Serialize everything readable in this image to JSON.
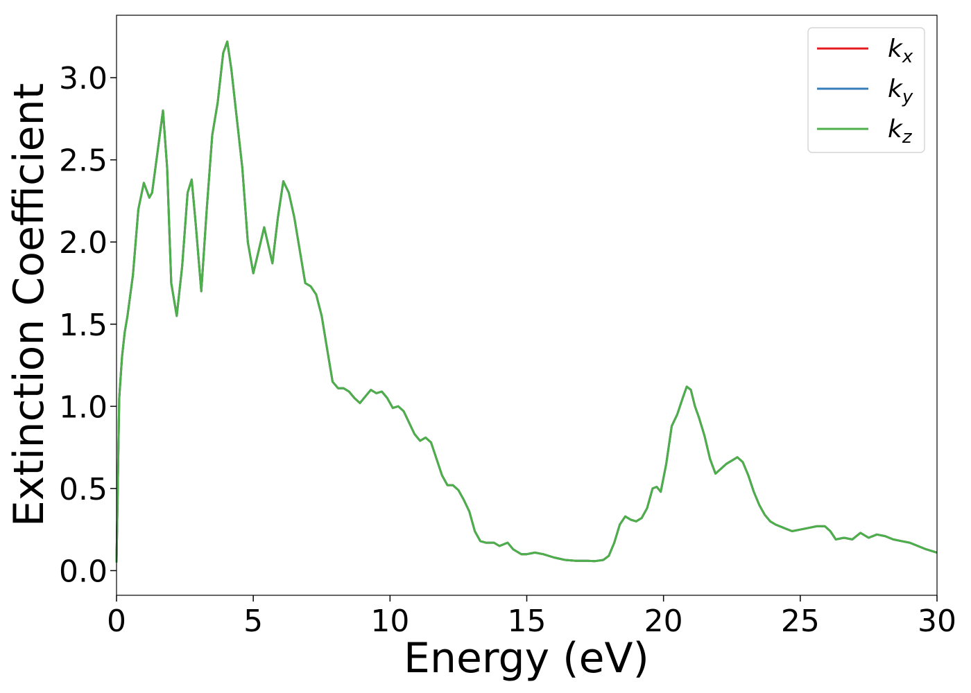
{
  "chart_data": {
    "type": "line",
    "xlabel": "Energy (eV)",
    "ylabel": "Extinction Coefficient",
    "xlim": [
      0,
      30
    ],
    "ylim": [
      -0.15,
      3.38
    ],
    "xticks": [
      0,
      5,
      10,
      15,
      20,
      25,
      30
    ],
    "yticks": [
      0.0,
      0.5,
      1.0,
      1.5,
      2.0,
      2.5,
      3.0
    ],
    "xtick_labels": [
      "0",
      "5",
      "10",
      "15",
      "20",
      "25",
      "30"
    ],
    "ytick_labels": [
      "0.0",
      "0.5",
      "1.0",
      "1.5",
      "2.0",
      "2.5",
      "3.0"
    ],
    "grid": false,
    "legend_position": "top-right",
    "series": [
      {
        "name": "k_x",
        "label_base": "k",
        "label_sub": "x",
        "color": "#e41a1c"
      },
      {
        "name": "k_y",
        "label_base": "k",
        "label_sub": "y",
        "color": "#377eb8"
      },
      {
        "name": "k_z",
        "label_base": "k",
        "label_sub": "z",
        "color": "#4daf4a"
      }
    ],
    "x": [
      0.0,
      0.1,
      0.2,
      0.3,
      0.4,
      0.6,
      0.8,
      1.0,
      1.2,
      1.3,
      1.5,
      1.7,
      1.85,
      2.0,
      2.2,
      2.4,
      2.6,
      2.75,
      2.9,
      3.1,
      3.3,
      3.5,
      3.7,
      3.9,
      4.05,
      4.2,
      4.4,
      4.6,
      4.8,
      5.0,
      5.2,
      5.4,
      5.55,
      5.7,
      5.9,
      6.1,
      6.3,
      6.5,
      6.7,
      6.9,
      7.1,
      7.3,
      7.5,
      7.7,
      7.9,
      8.1,
      8.3,
      8.5,
      8.7,
      8.9,
      9.1,
      9.3,
      9.5,
      9.7,
      9.9,
      10.1,
      10.3,
      10.5,
      10.7,
      10.9,
      11.1,
      11.3,
      11.5,
      11.7,
      11.9,
      12.1,
      12.3,
      12.5,
      12.7,
      12.9,
      13.1,
      13.3,
      13.5,
      13.8,
      14.0,
      14.3,
      14.5,
      14.8,
      15.0,
      15.3,
      15.6,
      16.0,
      16.4,
      16.8,
      17.2,
      17.5,
      17.8,
      18.0,
      18.2,
      18.4,
      18.6,
      18.8,
      19.0,
      19.2,
      19.4,
      19.6,
      19.75,
      19.9,
      20.1,
      20.3,
      20.5,
      20.7,
      20.85,
      21.0,
      21.15,
      21.3,
      21.5,
      21.7,
      21.9,
      22.1,
      22.3,
      22.5,
      22.7,
      22.9,
      23.1,
      23.3,
      23.5,
      23.7,
      23.9,
      24.1,
      24.4,
      24.7,
      25.0,
      25.3,
      25.6,
      25.9,
      26.1,
      26.3,
      26.6,
      26.9,
      27.2,
      27.5,
      27.8,
      28.1,
      28.4,
      28.7,
      29.0,
      29.3,
      29.6,
      30.0
    ],
    "values": [
      0.05,
      1.05,
      1.3,
      1.45,
      1.55,
      1.8,
      2.2,
      2.36,
      2.27,
      2.3,
      2.55,
      2.8,
      2.45,
      1.75,
      1.55,
      1.85,
      2.3,
      2.38,
      2.1,
      1.7,
      2.2,
      2.65,
      2.85,
      3.15,
      3.22,
      3.05,
      2.75,
      2.45,
      2.0,
      1.81,
      1.95,
      2.09,
      1.98,
      1.87,
      2.15,
      2.37,
      2.3,
      2.15,
      1.95,
      1.75,
      1.73,
      1.68,
      1.55,
      1.35,
      1.15,
      1.11,
      1.11,
      1.09,
      1.05,
      1.02,
      1.06,
      1.1,
      1.08,
      1.09,
      1.05,
      0.99,
      1.0,
      0.97,
      0.9,
      0.83,
      0.79,
      0.81,
      0.78,
      0.68,
      0.58,
      0.52,
      0.52,
      0.49,
      0.43,
      0.36,
      0.24,
      0.18,
      0.17,
      0.17,
      0.15,
      0.17,
      0.13,
      0.1,
      0.1,
      0.11,
      0.1,
      0.08,
      0.065,
      0.06,
      0.06,
      0.058,
      0.065,
      0.09,
      0.17,
      0.28,
      0.33,
      0.31,
      0.3,
      0.32,
      0.38,
      0.5,
      0.51,
      0.48,
      0.65,
      0.88,
      0.95,
      1.05,
      1.12,
      1.1,
      1.0,
      0.93,
      0.82,
      0.68,
      0.59,
      0.62,
      0.65,
      0.67,
      0.69,
      0.66,
      0.58,
      0.48,
      0.4,
      0.34,
      0.3,
      0.28,
      0.26,
      0.24,
      0.25,
      0.26,
      0.27,
      0.27,
      0.24,
      0.19,
      0.2,
      0.19,
      0.23,
      0.2,
      0.22,
      0.21,
      0.19,
      0.18,
      0.17,
      0.15,
      0.13,
      0.11
    ]
  }
}
